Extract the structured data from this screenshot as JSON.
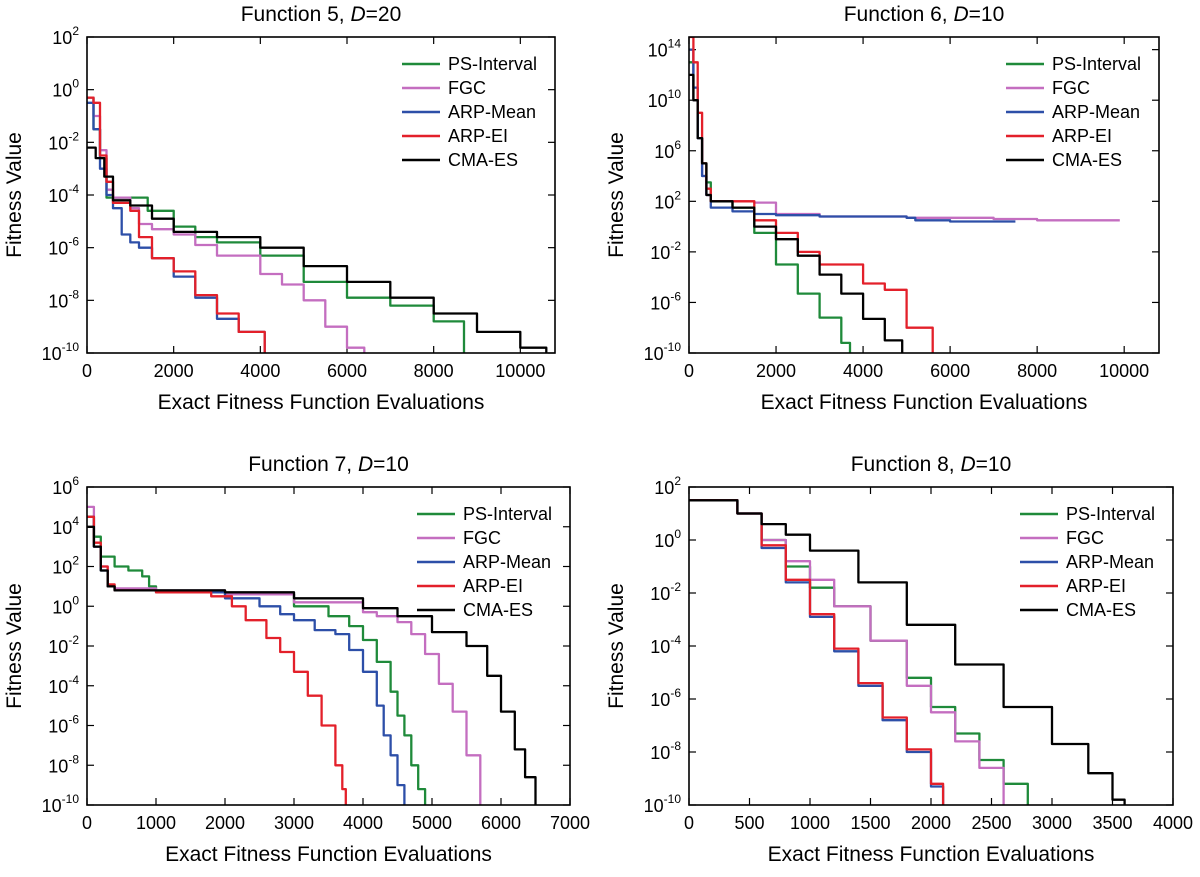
{
  "figure": {
    "panels": [
      {
        "title_prefix": "Function 5, ",
        "title_var": "D",
        "title_suffix": "=20",
        "xlabel": "Exact Fitness Function Evaluations",
        "ylabel": "Fitness Value",
        "xticks": [
          "0",
          "2000",
          "4000",
          "6000",
          "8000",
          "10000"
        ],
        "yticks": [
          {
            "base": "10",
            "exp": "2"
          },
          {
            "base": "10",
            "exp": "0"
          },
          {
            "base": "10",
            "exp": "-2"
          },
          {
            "base": "10",
            "exp": "-4"
          },
          {
            "base": "10",
            "exp": "-6"
          },
          {
            "base": "10",
            "exp": "-8"
          },
          {
            "base": "10",
            "exp": "-10"
          }
        ]
      },
      {
        "title_prefix": "Function 6, ",
        "title_var": "D",
        "title_suffix": "=10",
        "xlabel": "Exact Fitness Function Evaluations",
        "ylabel": "Fitness Value",
        "xticks": [
          "0",
          "2000",
          "4000",
          "6000",
          "8000",
          "10000"
        ],
        "yticks": [
          {
            "base": "10",
            "exp": "14"
          },
          {
            "base": "10",
            "exp": "10"
          },
          {
            "base": "10",
            "exp": "6"
          },
          {
            "base": "10",
            "exp": "2"
          },
          {
            "base": "10",
            "exp": "-2"
          },
          {
            "base": "10",
            "exp": "-6"
          },
          {
            "base": "10",
            "exp": "-10"
          }
        ]
      },
      {
        "title_prefix": "Function 7, ",
        "title_var": "D",
        "title_suffix": "=10",
        "xlabel": "Exact Fitness Function Evaluations",
        "ylabel": "Fitness Value",
        "xticks": [
          "0",
          "1000",
          "2000",
          "3000",
          "4000",
          "5000",
          "6000",
          "7000"
        ],
        "yticks": [
          {
            "base": "10",
            "exp": "6"
          },
          {
            "base": "10",
            "exp": "4"
          },
          {
            "base": "10",
            "exp": "2"
          },
          {
            "base": "10",
            "exp": "0"
          },
          {
            "base": "10",
            "exp": "-2"
          },
          {
            "base": "10",
            "exp": "-4"
          },
          {
            "base": "10",
            "exp": "-6"
          },
          {
            "base": "10",
            "exp": "-8"
          },
          {
            "base": "10",
            "exp": "-10"
          }
        ]
      },
      {
        "title_prefix": "Function 8, ",
        "title_var": "D",
        "title_suffix": "=10",
        "xlabel": "Exact Fitness Function Evaluations",
        "ylabel": "Fitness Value",
        "xticks": [
          "0",
          "500",
          "1000",
          "1500",
          "2000",
          "2500",
          "3000",
          "3500",
          "4000"
        ],
        "yticks": [
          {
            "base": "10",
            "exp": "2"
          },
          {
            "base": "10",
            "exp": "0"
          },
          {
            "base": "10",
            "exp": "-2"
          },
          {
            "base": "10",
            "exp": "-4"
          },
          {
            "base": "10",
            "exp": "-6"
          },
          {
            "base": "10",
            "exp": "-8"
          },
          {
            "base": "10",
            "exp": "-10"
          }
        ]
      }
    ]
  },
  "chart_data": [
    {
      "type": "line",
      "title": "Function 5, D=20",
      "xlabel": "Exact Fitness Function Evaluations",
      "ylabel": "Fitness Value",
      "xlim": [
        0,
        10800
      ],
      "ylim": [
        -10,
        2
      ],
      "yscale": "log",
      "legend": "top-right",
      "series": [
        {
          "name": "PS-Interval",
          "color": "#1f8a3a",
          "x": [
            0,
            150,
            300,
            450,
            600,
            1000,
            1200,
            1400,
            2000,
            2500,
            3000,
            4000,
            5000,
            6000,
            7000,
            8000,
            8700
          ],
          "y": [
            -0.3,
            -1.5,
            -2.6,
            -4.1,
            -4.1,
            -4.1,
            -4.1,
            -4.6,
            -5.2,
            -5.6,
            -5.8,
            -6.3,
            -7.3,
            -7.9,
            -8.2,
            -8.8,
            -10
          ]
        },
        {
          "name": "FGC",
          "color": "#c46ec0",
          "x": [
            0,
            150,
            300,
            450,
            600,
            1000,
            1200,
            1500,
            2000,
            2500,
            3000,
            4000,
            4500,
            5000,
            5500,
            6000,
            6400
          ],
          "y": [
            -0.3,
            -1,
            -2.3,
            -3.8,
            -4.1,
            -4.5,
            -5.1,
            -5.3,
            -5.5,
            -5.9,
            -6.3,
            -7,
            -7.4,
            -8,
            -9,
            -9.8,
            -10
          ]
        },
        {
          "name": "ARP-Mean",
          "color": "#2d4fa8",
          "x": [
            0,
            150,
            300,
            450,
            600,
            800,
            1000,
            1200,
            1500,
            2000,
            2500,
            3000,
            3500,
            4100
          ],
          "y": [
            -0.5,
            -1.5,
            -3,
            -4,
            -4.5,
            -5.5,
            -5.8,
            -6,
            -6.4,
            -7.1,
            -7.9,
            -8.7,
            -9.2,
            -10
          ]
        },
        {
          "name": "ARP-EI",
          "color": "#e3202a",
          "x": [
            0,
            150,
            300,
            450,
            600,
            1000,
            1200,
            1500,
            2000,
            2500,
            3000,
            3500,
            4100
          ],
          "y": [
            -0.3,
            -0.5,
            -2.5,
            -3.5,
            -4.3,
            -4.6,
            -5.6,
            -6.4,
            -6.9,
            -7.8,
            -8.5,
            -9.2,
            -10
          ]
        },
        {
          "name": "CMA-ES",
          "color": "#000000",
          "x": [
            0,
            200,
            400,
            600,
            1000,
            1500,
            2000,
            3000,
            4000,
            5000,
            6000,
            7000,
            8000,
            9000,
            10000,
            10600
          ],
          "y": [
            -2.2,
            -2.6,
            -3.3,
            -4.2,
            -4.4,
            -4.9,
            -5.4,
            -5.6,
            -6,
            -6.7,
            -7.3,
            -7.9,
            -8.5,
            -9.2,
            -9.8,
            -10
          ]
        }
      ]
    },
    {
      "type": "line",
      "title": "Function 6, D=10",
      "xlabel": "Exact Fitness Function Evaluations",
      "ylabel": "Fitness Value",
      "xlim": [
        0,
        10800
      ],
      "ylim": [
        -10,
        15
      ],
      "yscale": "log",
      "legend": "top-right",
      "series": [
        {
          "name": "PS-Interval",
          "color": "#1f8a3a",
          "x": [
            0,
            100,
            200,
            300,
            400,
            500,
            1000,
            1500,
            2000,
            2500,
            3000,
            3500,
            3700
          ],
          "y": [
            13,
            10,
            7,
            5,
            3.5,
            2,
            1.5,
            -0.5,
            -3,
            -5.3,
            -7.2,
            -9.2,
            -10
          ]
        },
        {
          "name": "FGC",
          "color": "#c46ec0",
          "x": [
            0,
            100,
            200,
            300,
            400,
            500,
            1000,
            1500,
            2000,
            3000,
            5000,
            7000,
            8000,
            9000,
            9900
          ],
          "y": [
            14,
            10,
            7,
            4,
            2.5,
            2,
            2,
            1.9,
            1,
            0.8,
            0.7,
            0.6,
            0.5,
            0.5,
            0.5
          ]
        },
        {
          "name": "ARP-Mean",
          "color": "#2d4fa8",
          "x": [
            0,
            100,
            200,
            300,
            400,
            500,
            1000,
            1500,
            2000,
            3000,
            4500,
            5000,
            5200,
            6000,
            7500
          ],
          "y": [
            14,
            11,
            7,
            4,
            2.5,
            1.5,
            1.2,
            1,
            0.9,
            0.8,
            0.8,
            0.7,
            0.5,
            0.4,
            0.4
          ]
        },
        {
          "name": "ARP-EI",
          "color": "#e3202a",
          "x": [
            0,
            100,
            200,
            300,
            400,
            500,
            1000,
            1500,
            2000,
            2500,
            3000,
            3500,
            4000,
            4500,
            5000,
            5600
          ],
          "y": [
            15,
            13,
            9,
            5,
            3,
            2,
            2,
            0.5,
            -0.5,
            -2,
            -3,
            -3,
            -4.5,
            -5,
            -8,
            -10
          ]
        },
        {
          "name": "CMA-ES",
          "color": "#000000",
          "x": [
            0,
            100,
            200,
            300,
            400,
            500,
            1000,
            1500,
            2000,
            2500,
            3000,
            3500,
            4000,
            4500,
            4900
          ],
          "y": [
            12,
            10,
            7,
            5,
            2.5,
            2,
            1.5,
            0,
            -1,
            -2.3,
            -3.8,
            -5.3,
            -7.3,
            -9,
            -10
          ]
        }
      ]
    },
    {
      "type": "line",
      "title": "Function 7, D=10",
      "xlabel": "Exact Fitness Function Evaluations",
      "ylabel": "Fitness Value",
      "xlim": [
        0,
        7000
      ],
      "ylim": [
        -10,
        6
      ],
      "yscale": "log",
      "legend": "top-right",
      "series": [
        {
          "name": "PS-Interval",
          "color": "#1f8a3a",
          "x": [
            0,
            100,
            200,
            400,
            600,
            800,
            900,
            1000,
            1200,
            2000,
            3000,
            3500,
            3800,
            4000,
            4200,
            4400,
            4500,
            4600,
            4700,
            4800,
            4900
          ],
          "y": [
            4.5,
            3.5,
            2.5,
            2,
            1.8,
            1.5,
            1,
            0.8,
            0.8,
            0.6,
            0,
            -0.5,
            -1,
            -1.7,
            -2.8,
            -4.3,
            -5.5,
            -6.5,
            -8,
            -9.2,
            -10
          ]
        },
        {
          "name": "FGC",
          "color": "#c46ec0",
          "x": [
            0,
            100,
            200,
            300,
            400,
            1000,
            2000,
            3000,
            4000,
            4200,
            4500,
            4700,
            4900,
            5100,
            5300,
            5500,
            5700
          ],
          "y": [
            5,
            3,
            2,
            1,
            0.9,
            0.8,
            0.6,
            0.2,
            -0.3,
            -0.5,
            -0.8,
            -1.4,
            -2.4,
            -3.9,
            -5.3,
            -7.5,
            -10
          ]
        },
        {
          "name": "ARP-Mean",
          "color": "#2d4fa8",
          "x": [
            0,
            100,
            200,
            300,
            400,
            1000,
            2000,
            2500,
            2800,
            3000,
            3300,
            3600,
            3800,
            4000,
            4200,
            4300,
            4400,
            4500,
            4600
          ],
          "y": [
            4.5,
            3,
            1.8,
            1,
            0.8,
            0.7,
            0.4,
            0,
            -0.4,
            -0.7,
            -1.2,
            -1.4,
            -2.2,
            -3.3,
            -5,
            -6.5,
            -7.5,
            -9,
            -10
          ]
        },
        {
          "name": "ARP-EI",
          "color": "#e3202a",
          "x": [
            0,
            100,
            200,
            300,
            400,
            1000,
            1800,
            2100,
            2300,
            2600,
            2800,
            3000,
            3200,
            3400,
            3600,
            3700,
            3750
          ],
          "y": [
            4.5,
            3.2,
            2,
            1.1,
            0.8,
            0.7,
            0.5,
            0,
            -0.7,
            -1.6,
            -2.3,
            -3.3,
            -4.5,
            -6,
            -8,
            -9.2,
            -10
          ]
        },
        {
          "name": "CMA-ES",
          "color": "#000000",
          "x": [
            0,
            100,
            200,
            300,
            400,
            1000,
            2000,
            3000,
            4000,
            4500,
            5000,
            5500,
            5800,
            6000,
            6200,
            6350,
            6500
          ],
          "y": [
            4,
            3,
            1.8,
            1,
            0.8,
            0.8,
            0.7,
            0.4,
            -0.1,
            -0.5,
            -1.3,
            -2,
            -3.5,
            -5.3,
            -7.2,
            -8.6,
            -10
          ]
        }
      ]
    },
    {
      "type": "line",
      "title": "Function 8, D=10",
      "xlabel": "Exact Fitness Function Evaluations",
      "ylabel": "Fitness Value",
      "xlim": [
        0,
        4000
      ],
      "ylim": [
        -10,
        2
      ],
      "yscale": "log",
      "legend": "top-right",
      "series": [
        {
          "name": "PS-Interval",
          "color": "#1f8a3a",
          "x": [
            0,
            200,
            400,
            600,
            800,
            1000,
            1200,
            1500,
            1800,
            2000,
            2200,
            2400,
            2600,
            2800
          ],
          "y": [
            1.5,
            1.5,
            1,
            0,
            -1,
            -1.8,
            -2.5,
            -3.8,
            -5.2,
            -6.3,
            -7.3,
            -8.3,
            -9.2,
            -10
          ]
        },
        {
          "name": "FGC",
          "color": "#c46ec0",
          "x": [
            0,
            200,
            400,
            600,
            800,
            1000,
            1200,
            1500,
            1800,
            2000,
            2200,
            2400,
            2600
          ],
          "y": [
            1.5,
            1.5,
            1,
            0,
            -0.8,
            -1.5,
            -2.5,
            -3.8,
            -5.5,
            -6.5,
            -7.6,
            -8.6,
            -10
          ]
        },
        {
          "name": "ARP-Mean",
          "color": "#2d4fa8",
          "x": [
            0,
            200,
            400,
            600,
            800,
            1000,
            1200,
            1400,
            1600,
            1800,
            2000,
            2100
          ],
          "y": [
            1.5,
            1.5,
            1,
            -0.3,
            -1.6,
            -2.9,
            -4.2,
            -5.5,
            -6.8,
            -8,
            -9.3,
            -10
          ]
        },
        {
          "name": "ARP-EI",
          "color": "#e3202a",
          "x": [
            0,
            200,
            400,
            600,
            800,
            1000,
            1200,
            1400,
            1600,
            1800,
            2000,
            2100
          ],
          "y": [
            1.5,
            1.5,
            1,
            -0.2,
            -1.5,
            -2.8,
            -4.1,
            -5.4,
            -6.7,
            -7.9,
            -9.2,
            -10
          ]
        },
        {
          "name": "CMA-ES",
          "color": "#000000",
          "x": [
            0,
            200,
            400,
            600,
            800,
            1000,
            1400,
            1800,
            2200,
            2600,
            3000,
            3300,
            3500,
            3600
          ],
          "y": [
            1.5,
            1.5,
            1,
            0.6,
            0.2,
            -0.4,
            -1.6,
            -3.2,
            -4.7,
            -6.3,
            -7.7,
            -8.8,
            -9.8,
            -10
          ]
        }
      ]
    }
  ]
}
